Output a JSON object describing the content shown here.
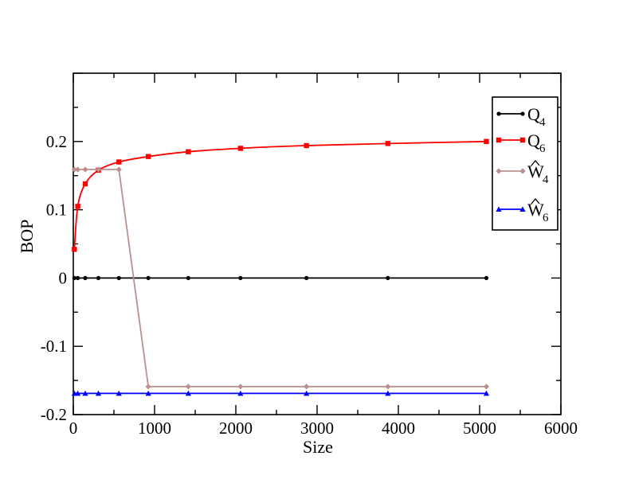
{
  "chart_data": {
    "type": "line",
    "xlabel": "Size",
    "ylabel": "BOP",
    "xlim": [
      0,
      6000
    ],
    "ylim": [
      -0.2,
      0.3
    ],
    "x_ticks": [
      0,
      1000,
      2000,
      3000,
      4000,
      5000,
      6000
    ],
    "x_tick_labels": [
      "0",
      "1000",
      "2000",
      "3000",
      "4000",
      "5000",
      "6000"
    ],
    "y_ticks": [
      -0.2,
      -0.1,
      0,
      0.1,
      0.2
    ],
    "y_tick_labels": [
      "-0.2",
      "-0.1",
      "0",
      "0.1",
      "0.2"
    ],
    "grid": false,
    "legend_position": "top-right",
    "series": [
      {
        "name": "Q",
        "subscript": "4",
        "hat": false,
        "color": "#000000",
        "marker": "circle",
        "x": [
          13,
          55,
          147,
          309,
          561,
          923,
          1415,
          2057,
          2869,
          3871,
          5083
        ],
        "y": [
          0,
          0,
          0,
          0,
          0,
          0,
          0,
          0,
          0,
          0,
          0
        ]
      },
      {
        "name": "Q",
        "subscript": "6",
        "hat": false,
        "color": "#ff0000",
        "marker": "square",
        "curve": true,
        "x": [
          13,
          55,
          147,
          309,
          561,
          923,
          1415,
          2057,
          2869,
          3871,
          5083
        ],
        "y": [
          0.042,
          0.105,
          0.138,
          0.158,
          0.17,
          0.178,
          0.185,
          0.19,
          0.194,
          0.197,
          0.2
        ]
      },
      {
        "name": "W",
        "subscript": "4",
        "hat": true,
        "color": "#bc8f8f",
        "marker": "diamond",
        "x": [
          13,
          55,
          147,
          309,
          561,
          923,
          1415,
          2057,
          2869,
          3871,
          5083
        ],
        "y": [
          0.159,
          0.159,
          0.159,
          0.159,
          0.159,
          -0.159,
          -0.159,
          -0.159,
          -0.159,
          -0.159,
          -0.159
        ]
      },
      {
        "name": "W",
        "subscript": "6",
        "hat": true,
        "color": "#0000ff",
        "marker": "triangle",
        "x": [
          13,
          55,
          147,
          309,
          561,
          923,
          1415,
          2057,
          2869,
          3871,
          5083
        ],
        "y": [
          -0.169,
          -0.169,
          -0.169,
          -0.169,
          -0.169,
          -0.169,
          -0.169,
          -0.169,
          -0.169,
          -0.169,
          -0.169
        ]
      }
    ]
  }
}
